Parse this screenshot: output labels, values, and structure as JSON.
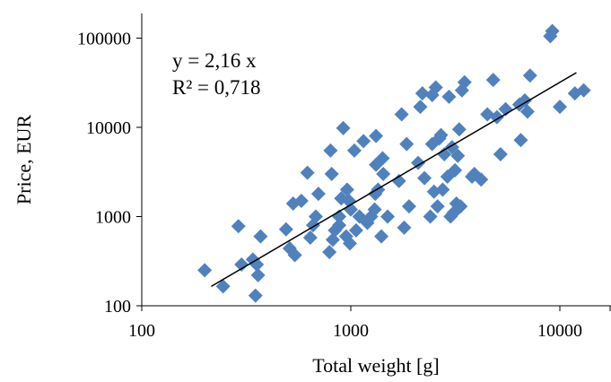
{
  "chart_data": {
    "type": "scatter",
    "xlabel": "Total weight [g]",
    "ylabel": "Price, EUR",
    "x_scale": "log",
    "y_scale": "log",
    "xlim": [
      100,
      17000
    ],
    "ylim": [
      100,
      150000
    ],
    "x_ticks": [
      "100",
      "1000",
      "10000"
    ],
    "y_ticks": [
      "100",
      "1000",
      "10000",
      "100000"
    ],
    "grid": false,
    "legend": "none",
    "marker": "diamond",
    "marker_color": "#4F81BD",
    "trendline_color": "#000000",
    "annotations": [
      "y = 2,16 x",
      "R² = 0,718"
    ],
    "trendline": {
      "x": [
        215,
        12000
      ],
      "y": [
        165,
        41000
      ]
    },
    "points": {
      "x": [
        200,
        245,
        290,
        300,
        340,
        350,
        355,
        360,
        370,
        490,
        510,
        530,
        540,
        580,
        620,
        640,
        660,
        680,
        700,
        790,
        800,
        810,
        820,
        840,
        880,
        880,
        900,
        920,
        950,
        960,
        980,
        990,
        1000,
        1040,
        1060,
        1100,
        1150,
        1200,
        1250,
        1300,
        1310,
        1320,
        1320,
        1350,
        1400,
        1420,
        1430,
        1500,
        1700,
        1750,
        1800,
        1850,
        1900,
        2100,
        2150,
        2200,
        2250,
        2400,
        2450,
        2450,
        2500,
        2550,
        2600,
        2650,
        2700,
        2750,
        2800,
        2900,
        2950,
        3000,
        3050,
        3100,
        3150,
        3200,
        3250,
        3300,
        3350,
        3400,
        3500,
        3800,
        3900,
        4200,
        4500,
        4800,
        5000,
        5200,
        5500,
        6400,
        6500,
        6800,
        7000,
        7200,
        9000,
        9200,
        10000,
        11800,
        13000
      ],
      "y": [
        250,
        165,
        780,
        290,
        330,
        130,
        290,
        220,
        600,
        720,
        440,
        1400,
        370,
        1500,
        3100,
        580,
        800,
        1000,
        1800,
        400,
        5500,
        3000,
        550,
        700,
        1000,
        800,
        1600,
        9800,
        600,
        2000,
        1500,
        500,
        1200,
        5500,
        700,
        1000,
        7000,
        850,
        1000,
        1200,
        1800,
        8000,
        3800,
        2000,
        600,
        4500,
        3000,
        1000,
        2500,
        14000,
        750,
        6500,
        1300,
        4000,
        17000,
        24000,
        2700,
        1000,
        6500,
        23000,
        1900,
        28000,
        1300,
        7500,
        8200,
        2000,
        5000,
        2800,
        22000,
        1000,
        6000,
        1100,
        3300,
        1400,
        4800,
        9500,
        1300,
        26000,
        32000,
        2800,
        3000,
        2600,
        14000,
        34000,
        13000,
        5000,
        16000,
        18000,
        7200,
        20000,
        15000,
        38000,
        105000,
        120000,
        17000,
        24000,
        26000
      ]
    }
  }
}
